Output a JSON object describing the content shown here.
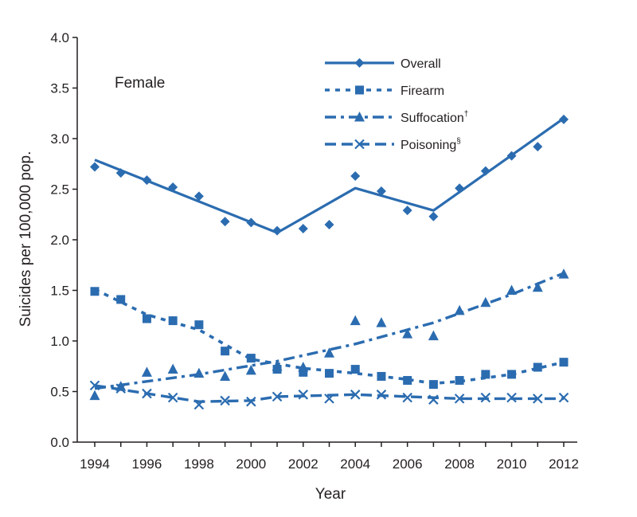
{
  "chart_data": {
    "type": "line",
    "panel_label": "Female",
    "xlabel": "Year",
    "ylabel": "Suicides per 100,000 pop.",
    "xlim": [
      1994,
      2012
    ],
    "ylim": [
      0,
      4.0
    ],
    "x_ticks": [
      1994,
      1996,
      1998,
      2000,
      2002,
      2004,
      2006,
      2008,
      2010,
      2012
    ],
    "y_ticks": [
      "0.0",
      "0.5",
      "1.0",
      "1.5",
      "2.0",
      "2.5",
      "3.0",
      "3.5",
      "4.0"
    ],
    "legend_position": "top-right",
    "x": [
      1994,
      1995,
      1996,
      1997,
      1998,
      1999,
      2000,
      2001,
      2002,
      2003,
      2004,
      2005,
      2006,
      2007,
      2008,
      2009,
      2010,
      2011,
      2012
    ],
    "series": [
      {
        "name": "Overall",
        "legend_label": "Overall",
        "marker": "diamond",
        "dash": "solid",
        "values": [
          2.72,
          2.66,
          2.59,
          2.52,
          2.43,
          2.18,
          2.17,
          2.09,
          2.11,
          2.15,
          2.63,
          2.48,
          2.29,
          2.23,
          2.51,
          2.68,
          2.83,
          2.92,
          3.19
        ],
        "trend": [
          [
            1994,
            2.79
          ],
          [
            2001,
            2.07
          ],
          [
            2004,
            2.51
          ],
          [
            2007,
            2.29
          ],
          [
            2012,
            3.2
          ]
        ]
      },
      {
        "name": "Firearm",
        "legend_label": "Firearm",
        "marker": "square",
        "dash": "dotted",
        "values": [
          1.49,
          1.41,
          1.22,
          1.2,
          1.16,
          0.9,
          0.83,
          0.72,
          0.69,
          0.68,
          0.72,
          0.65,
          0.61,
          0.57,
          0.61,
          0.67,
          0.67,
          0.74,
          0.79
        ],
        "trend": [
          [
            1994,
            1.51
          ],
          [
            1996,
            1.26
          ],
          [
            1998,
            1.11
          ],
          [
            2000,
            0.82
          ],
          [
            2002,
            0.73
          ],
          [
            2004,
            0.68
          ],
          [
            2006,
            0.62
          ],
          [
            2007,
            0.58
          ],
          [
            2008,
            0.6
          ],
          [
            2010,
            0.67
          ],
          [
            2012,
            0.79
          ]
        ]
      },
      {
        "name": "Suffocation",
        "legend_label": "Suffocation",
        "legend_mark": "†",
        "marker": "triangle",
        "dash": "dashdot",
        "values": [
          0.46,
          0.55,
          0.69,
          0.72,
          0.68,
          0.65,
          0.71,
          0.75,
          0.74,
          0.88,
          1.2,
          1.18,
          1.07,
          1.05,
          1.3,
          1.38,
          1.5,
          1.53,
          1.66
        ],
        "trend": [
          [
            1994,
            0.53
          ],
          [
            1998,
            0.67
          ],
          [
            2001,
            0.8
          ],
          [
            2004,
            0.97
          ],
          [
            2007,
            1.18
          ],
          [
            2010,
            1.46
          ],
          [
            2012,
            1.67
          ]
        ]
      },
      {
        "name": "Poisoning",
        "legend_label": "Poisoning",
        "legend_mark": "§",
        "marker": "x",
        "dash": "dashed",
        "values": [
          0.56,
          0.53,
          0.48,
          0.44,
          0.37,
          0.41,
          0.4,
          0.45,
          0.47,
          0.43,
          0.47,
          0.47,
          0.44,
          0.42,
          0.43,
          0.44,
          0.44,
          0.43,
          0.44
        ],
        "trend": [
          [
            1994,
            0.56
          ],
          [
            1996,
            0.48
          ],
          [
            1998,
            0.4
          ],
          [
            2000,
            0.41
          ],
          [
            2001,
            0.45
          ],
          [
            2004,
            0.47
          ],
          [
            2006,
            0.45
          ],
          [
            2008,
            0.43
          ],
          [
            2012,
            0.43
          ]
        ]
      }
    ],
    "line_color": "#2b6cb0",
    "axis_color": "#231f20"
  }
}
